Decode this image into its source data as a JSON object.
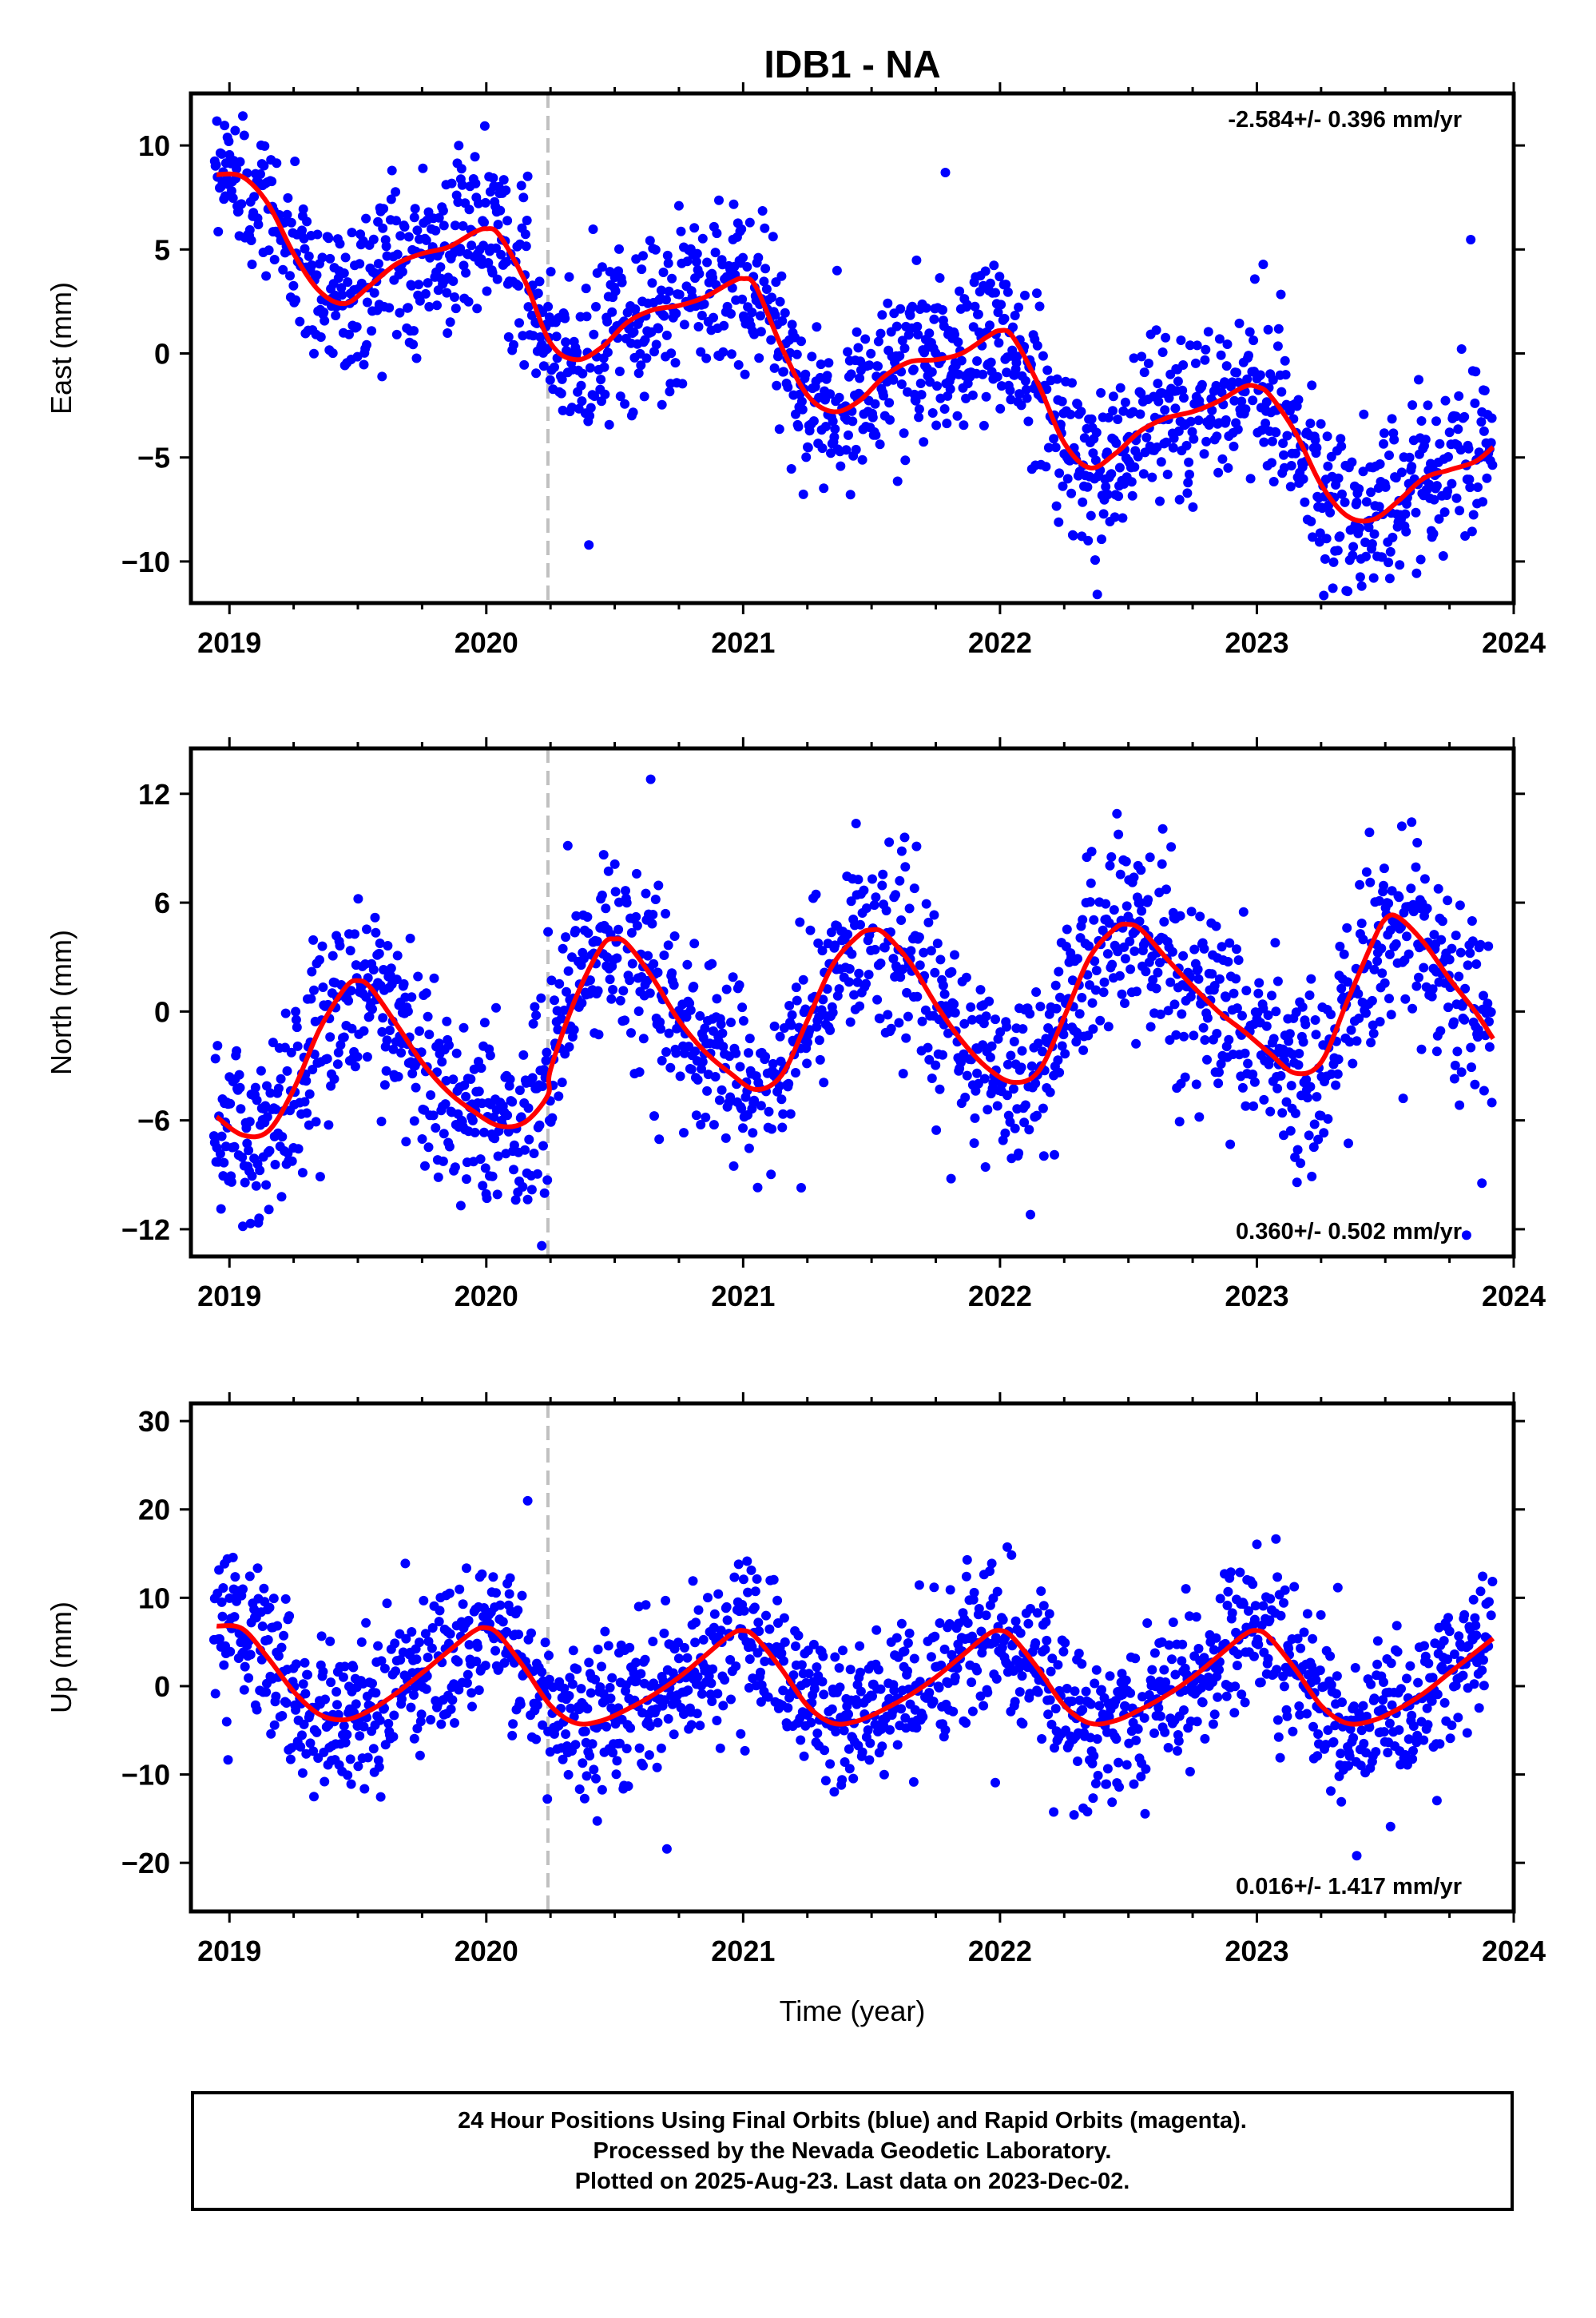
{
  "title": "IDB1 - NA",
  "xlabel": "Time (year)",
  "colors": {
    "final_orbits": "#0000ff",
    "fit": "#ff0000",
    "event_line": "#c0c0c0"
  },
  "footer": {
    "line1": "24 Hour Positions Using Final Orbits (blue) and Rapid Orbits (magenta).",
    "line2": "Processed by the Nevada Geodetic Laboratory.",
    "line3": "Plotted on 2025-Aug-23. Last data on 2023-Dec-02."
  },
  "chart_data": [
    {
      "type": "scatter",
      "panel": "east",
      "ylabel": "East (mm)",
      "rate_label": "-2.584+/- 0.396 mm/yr",
      "rate_label_position": "top-right",
      "xlim": [
        2018.85,
        2024.0
      ],
      "ylim": [
        -12,
        12.5
      ],
      "xticks": [
        2019,
        2020,
        2021,
        2022,
        2023,
        2024
      ],
      "yticks": [
        10,
        5,
        0,
        -5,
        -10
      ],
      "ytick_labels": [
        "10",
        "5",
        "0",
        "−5",
        "−10"
      ],
      "event_line_x": 2020.24,
      "trend": {
        "intercept_at_2021": 0.5,
        "rate": -2.584
      },
      "fit_line": {
        "x": [
          2018.95,
          2019.05,
          2019.15,
          2019.25,
          2019.35,
          2019.45,
          2019.55,
          2019.65,
          2019.75,
          2019.85,
          2019.95,
          2020.0,
          2020.05,
          2020.15,
          2020.25,
          2020.35,
          2020.45,
          2020.55,
          2020.65,
          2020.75,
          2020.85,
          2020.95,
          2021.0,
          2021.05,
          2021.15,
          2021.25,
          2021.35,
          2021.45,
          2021.55,
          2021.65,
          2021.75,
          2021.85,
          2021.95,
          2022.0,
          2022.05,
          2022.15,
          2022.25,
          2022.35,
          2022.45,
          2022.55,
          2022.65,
          2022.75,
          2022.85,
          2022.95,
          2023.0,
          2023.05,
          2023.15,
          2023.25,
          2023.35,
          2023.45,
          2023.55,
          2023.65,
          2023.75,
          2023.85,
          2023.92
        ],
        "y": [
          8.6,
          8.5,
          7.2,
          4.8,
          3.0,
          2.4,
          3.3,
          4.3,
          4.8,
          5.1,
          5.8,
          6.0,
          5.7,
          3.5,
          0.5,
          -0.3,
          0.3,
          1.5,
          2.1,
          2.3,
          2.7,
          3.4,
          3.6,
          3.2,
          0.3,
          -2.0,
          -2.8,
          -2.3,
          -1.1,
          -0.4,
          -0.3,
          0.0,
          0.8,
          1.1,
          0.8,
          -1.5,
          -4.3,
          -5.5,
          -4.8,
          -3.7,
          -3.1,
          -2.8,
          -2.3,
          -1.6,
          -1.6,
          -2.0,
          -3.8,
          -6.3,
          -7.8,
          -8.0,
          -7.1,
          -6.0,
          -5.6,
          -5.2,
          -4.5
        ]
      },
      "points": "~1500 daily solutions scattered about the fit (approx. ±2.5 mm)"
    },
    {
      "type": "scatter",
      "panel": "north",
      "ylabel": "North (mm)",
      "rate_label": "0.360+/- 0.502 mm/yr",
      "rate_label_position": "bottom-right",
      "xlim": [
        2018.85,
        2024.0
      ],
      "ylim": [
        -13.5,
        14.5
      ],
      "xticks": [
        2019,
        2020,
        2021,
        2022,
        2023,
        2024
      ],
      "yticks": [
        12,
        6,
        0,
        -6,
        -12
      ],
      "ytick_labels": [
        "12",
        "6",
        "0",
        "−6",
        "−12"
      ],
      "event_line_x": 2020.24,
      "trend": {
        "intercept_at_2021": -1.3,
        "rate": 0.36
      },
      "fit_line": {
        "x": [
          2018.95,
          2019.05,
          2019.15,
          2019.25,
          2019.35,
          2019.45,
          2019.5,
          2019.55,
          2019.65,
          2019.75,
          2019.85,
          2019.95,
          2020.05,
          2020.15,
          2020.24,
          2020.25,
          2020.35,
          2020.45,
          2020.5,
          2020.55,
          2020.65,
          2020.75,
          2020.85,
          2020.95,
          2021.05,
          2021.15,
          2021.25,
          2021.35,
          2021.45,
          2021.5,
          2021.55,
          2021.65,
          2021.75,
          2021.85,
          2021.95,
          2022.05,
          2022.15,
          2022.25,
          2022.35,
          2022.45,
          2022.5,
          2022.55,
          2022.65,
          2022.75,
          2022.85,
          2022.95,
          2023.05,
          2023.15,
          2023.25,
          2023.35,
          2023.45,
          2023.5,
          2023.55,
          2023.65,
          2023.75,
          2023.85,
          2023.92
        ],
        "y": [
          -5.8,
          -6.8,
          -6.6,
          -4.3,
          -1.0,
          1.3,
          1.7,
          1.3,
          -0.7,
          -2.8,
          -4.4,
          -5.5,
          -6.3,
          -6.1,
          -4.6,
          -3.2,
          0.8,
          3.6,
          4.0,
          3.7,
          1.8,
          -0.5,
          -2.2,
          -3.4,
          -4.3,
          -3.5,
          -0.5,
          2.6,
          4.2,
          4.5,
          4.3,
          2.7,
          0.4,
          -1.6,
          -3.1,
          -3.9,
          -3.3,
          -0.3,
          3.0,
          4.6,
          4.8,
          4.5,
          2.9,
          1.4,
          0.0,
          -1.1,
          -2.3,
          -3.4,
          -2.8,
          0.5,
          3.8,
          5.1,
          5.2,
          3.8,
          1.8,
          0.0,
          -1.5
        ]
      },
      "points": "~1500 daily solutions scattered about the fit (approx. ±3 mm)"
    },
    {
      "type": "scatter",
      "panel": "up",
      "ylabel": "Up (mm)",
      "rate_label": "0.016+/- 1.417 mm/yr",
      "rate_label_position": "bottom-right",
      "xlim": [
        2018.85,
        2024.0
      ],
      "ylim": [
        -25.5,
        32
      ],
      "xticks": [
        2019,
        2020,
        2021,
        2022,
        2023,
        2024
      ],
      "yticks": [
        30,
        20,
        10,
        0,
        -10,
        -20
      ],
      "ytick_labels": [
        "30",
        "20",
        "10",
        "0",
        "−10",
        "−20"
      ],
      "event_line_x": 2020.24,
      "trend": {
        "intercept_at_2021": 0.0,
        "rate": 0.016
      },
      "fit_line": {
        "x": [
          2018.95,
          2019.05,
          2019.15,
          2019.25,
          2019.35,
          2019.45,
          2019.55,
          2019.65,
          2019.75,
          2019.85,
          2019.95,
          2020.0,
          2020.05,
          2020.15,
          2020.25,
          2020.35,
          2020.45,
          2020.55,
          2020.65,
          2020.75,
          2020.85,
          2020.95,
          2021.0,
          2021.05,
          2021.15,
          2021.25,
          2021.35,
          2021.45,
          2021.55,
          2021.65,
          2021.75,
          2021.85,
          2021.95,
          2022.0,
          2022.05,
          2022.15,
          2022.25,
          2022.35,
          2022.45,
          2022.55,
          2022.65,
          2022.75,
          2022.85,
          2022.95,
          2023.0,
          2023.05,
          2023.15,
          2023.25,
          2023.35,
          2023.45,
          2023.55,
          2023.65,
          2023.75,
          2023.85,
          2023.92
        ],
        "y": [
          6.8,
          6.5,
          3.2,
          -0.6,
          -3.2,
          -3.8,
          -2.7,
          -0.8,
          1.5,
          3.9,
          6.2,
          6.6,
          5.8,
          2.0,
          -2.2,
          -4.2,
          -3.9,
          -2.6,
          -1.0,
          1.0,
          3.4,
          5.8,
          6.3,
          5.5,
          1.9,
          -2.2,
          -4.2,
          -3.9,
          -2.6,
          -1.0,
          1.0,
          3.4,
          5.8,
          6.3,
          5.5,
          1.9,
          -2.2,
          -4.2,
          -3.9,
          -2.6,
          -1.0,
          1.0,
          3.4,
          5.8,
          6.3,
          5.5,
          1.9,
          -2.2,
          -4.2,
          -3.9,
          -2.6,
          -0.8,
          1.5,
          3.8,
          5.4
        ]
      },
      "points": "~1500 daily solutions scattered about the fit (approx. ±5 mm)"
    }
  ]
}
